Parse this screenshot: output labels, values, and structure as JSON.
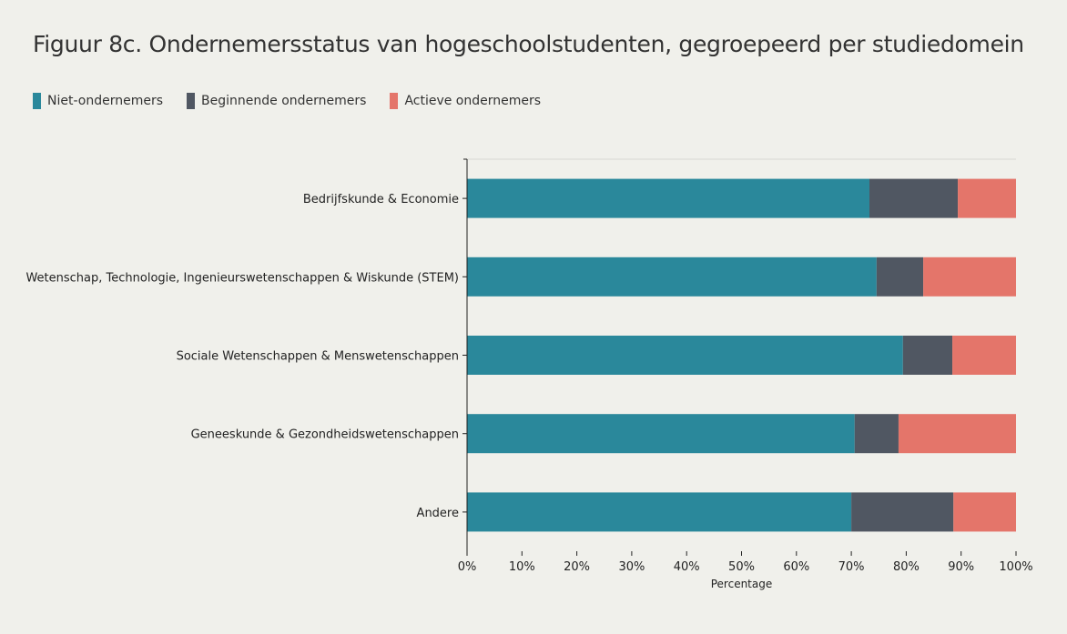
{
  "chart_data": {
    "type": "bar",
    "orientation": "horizontal",
    "stacked": true,
    "title": "Figuur 8c. Ondernemersstatus van hogeschoolstudenten, gegroepeerd per studiedomein",
    "xlabel": "Percentage",
    "ylabel": "",
    "xlim": [
      0,
      100
    ],
    "xticks": [
      "0%",
      "10%",
      "20%",
      "30%",
      "40%",
      "50%",
      "60%",
      "70%",
      "80%",
      "90%",
      "100%"
    ],
    "legend_position": "top-left",
    "categories": [
      "Bedrijfskunde & Economie",
      "Wetenschap, Technologie, Ingenieurswetenschappen & Wiskunde (STEM)",
      "Sociale Wetenschappen & Menswetenschappen",
      "Geneeskunde & Gezondheidswetenschappen",
      "Andere"
    ],
    "series": [
      {
        "name": "Niet-ondernemers",
        "color": "#2a889b",
        "values": [
          73.3,
          74.6,
          79.4,
          70.6,
          70.0
        ]
      },
      {
        "name": "Beginnende ondernemers",
        "color": "#505762",
        "values": [
          16.1,
          8.5,
          9.0,
          8.0,
          18.6
        ]
      },
      {
        "name": "Actieve ondernemers",
        "color": "#e4756a",
        "values": [
          10.6,
          16.9,
          11.6,
          21.4,
          11.4
        ]
      }
    ]
  }
}
